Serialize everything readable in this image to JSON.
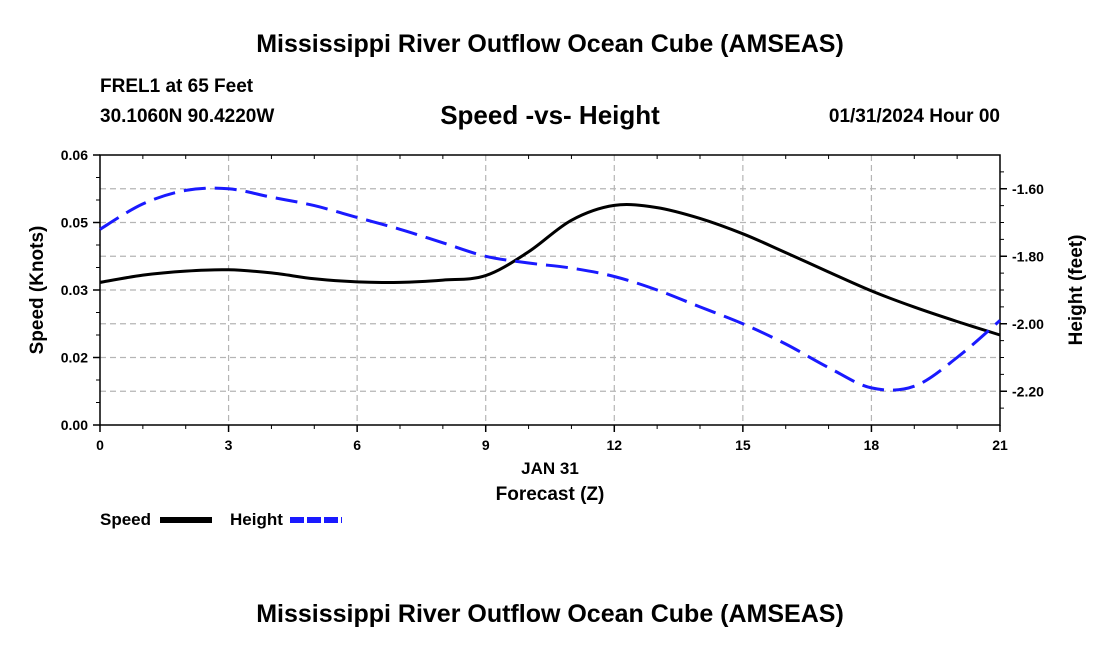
{
  "header": {
    "title": "Mississippi River Outflow Ocean Cube (AMSEAS)",
    "title_repeat": "Mississippi River Outflow Ocean Cube (AMSEAS)",
    "station": "FREL1 at 65 Feet",
    "coords": "30.1060N  90.4220W",
    "subtitle": "Speed -vs- Height",
    "datetime": "01/31/2024 Hour 00"
  },
  "chart_data": {
    "type": "line",
    "title": "Speed -vs- Height",
    "xlabel": "Forecast (Z)",
    "xdate_label": "JAN 31",
    "ylabel": "Speed (Knots)",
    "y2label": "Height (feet)",
    "xlim": [
      0,
      21
    ],
    "ylim": [
      0,
      0.06
    ],
    "y2lim": [
      -2.3,
      -1.5
    ],
    "x_ticks": [
      0,
      3,
      6,
      9,
      12,
      15,
      18,
      21
    ],
    "x_tick_labels": [
      "0",
      "3",
      "6",
      "9",
      "12",
      "15",
      "18",
      "21"
    ],
    "y_ticks": [
      0,
      0.015,
      0.03,
      0.045,
      0.06
    ],
    "y_tick_labels": [
      "0.00",
      "0.02",
      "0.03",
      "0.05",
      "0.06"
    ],
    "y2_ticks": [
      -1.6,
      -1.8,
      -2.0,
      -2.2
    ],
    "y2_tick_labels": [
      "-1.60",
      "-1.80",
      "-2.00",
      "-2.20"
    ],
    "grid": true,
    "legend": [
      "Speed",
      "Height"
    ],
    "series": [
      {
        "name": "Speed",
        "axis": "left",
        "color": "#000000",
        "style": "solid",
        "x": [
          0,
          1,
          2,
          3,
          4,
          5,
          6,
          7,
          8,
          9,
          10,
          11,
          12,
          13,
          14,
          15,
          16,
          17,
          18,
          19,
          20,
          21
        ],
        "y": [
          0.0317,
          0.0333,
          0.0342,
          0.0345,
          0.0338,
          0.0325,
          0.0318,
          0.0317,
          0.0322,
          0.0332,
          0.0385,
          0.0455,
          0.0488,
          0.0483,
          0.0459,
          0.0425,
          0.0383,
          0.034,
          0.0298,
          0.0262,
          0.023,
          0.02
        ]
      },
      {
        "name": "Height",
        "axis": "right",
        "color": "#1a1aff",
        "style": "dashed",
        "x": [
          0,
          1,
          2,
          3,
          4,
          5,
          6,
          7,
          8,
          9,
          10,
          11,
          12,
          13,
          14,
          15,
          16,
          17,
          18,
          19,
          20,
          21
        ],
        "y": [
          -1.72,
          -1.645,
          -1.605,
          -1.6,
          -1.625,
          -1.65,
          -1.685,
          -1.72,
          -1.76,
          -1.8,
          -1.82,
          -1.835,
          -1.86,
          -1.9,
          -1.95,
          -2.0,
          -2.06,
          -2.13,
          -2.19,
          -2.185,
          -2.1,
          -1.99
        ]
      }
    ]
  }
}
